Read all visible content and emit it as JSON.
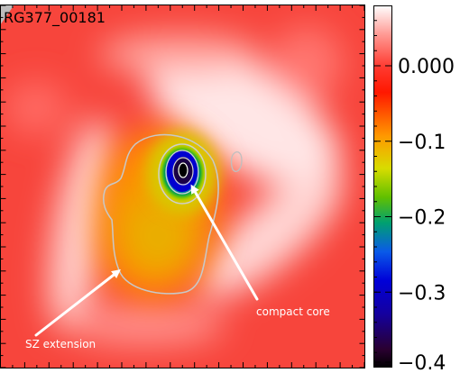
{
  "figure": {
    "object_label": "RG377_00181",
    "annotations": {
      "compact_core": "compact core",
      "sz_extension": "SZ extension"
    }
  },
  "colorbar": {
    "tick_labels": [
      "0.000",
      "−0.1",
      "−0.2",
      "−0.3",
      "−0.4"
    ],
    "tick_values": [
      0.0,
      -0.1,
      -0.2,
      -0.3,
      -0.4
    ],
    "range": [
      -0.4,
      0.08
    ],
    "stops": [
      "#000000",
      "#3b0030",
      "#2a00c8",
      "#0000e0",
      "#0a6cf0",
      "#00b060",
      "#7dc800",
      "#e0e000",
      "#ff9a00",
      "#ff1000",
      "#ff6060",
      "#ffffff"
    ]
  },
  "colors": {
    "background_field": "#f7453c",
    "arrow": "#ffffff",
    "contour": "#c7c7c7"
  }
}
